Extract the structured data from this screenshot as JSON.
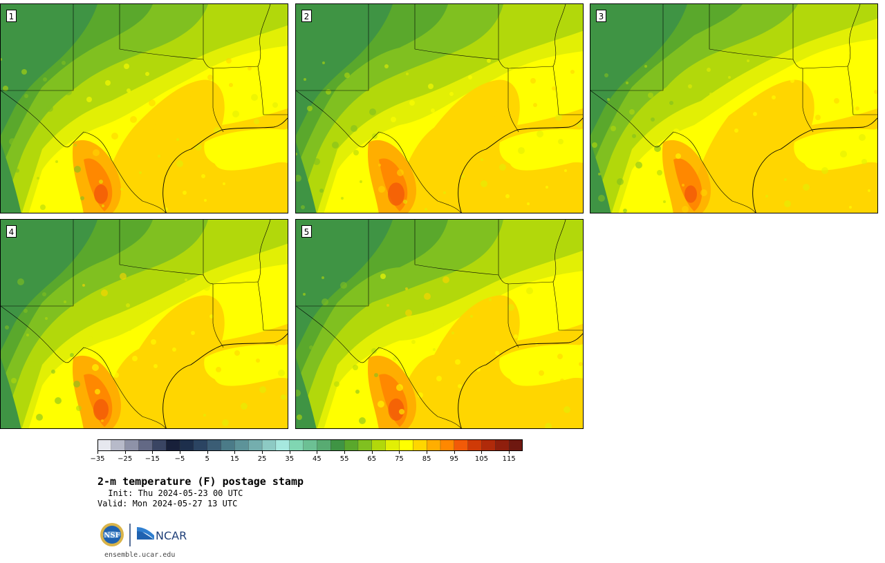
{
  "product_title": "2-m temperature (F) postage stamp",
  "init_text": " Init: Thu 2024-05-23 00 UTC",
  "valid_text": "Valid: Mon 2024-05-27 13 UTC",
  "panels": [
    {
      "label": "1"
    },
    {
      "label": "2"
    },
    {
      "label": "3"
    },
    {
      "label": "4"
    },
    {
      "label": "5"
    }
  ],
  "colorbar": {
    "levels": [
      -35,
      -30,
      -25,
      -20,
      -15,
      -10,
      -5,
      0,
      5,
      10,
      15,
      20,
      25,
      30,
      35,
      40,
      45,
      50,
      55,
      60,
      65,
      70,
      75,
      80,
      85,
      90,
      95,
      100,
      105,
      110,
      115,
      120
    ],
    "tick_labels": [
      "−35",
      "−25",
      "−15",
      "−5",
      "5",
      "15",
      "25",
      "35",
      "45",
      "55",
      "65",
      "75",
      "85",
      "95",
      "105",
      "115"
    ],
    "colors": [
      "#e6e8ef",
      "#b7bac9",
      "#8e92a8",
      "#636985",
      "#3a4563",
      "#18203a",
      "#1d2f4c",
      "#2b4462",
      "#3b5d75",
      "#4b7b88",
      "#5d9399",
      "#74aeae",
      "#8dcac4",
      "#a6e8df",
      "#80d6b2",
      "#6cc094",
      "#58ab72",
      "#3f9444",
      "#5aa82c",
      "#80c020",
      "#b2d80b",
      "#e2ef05",
      "#ffff00",
      "#ffd600",
      "#ffae00",
      "#ff8800",
      "#f25a08",
      "#cf3a07",
      "#b02a0a",
      "#8f1f0d",
      "#6e1810"
    ]
  },
  "logo": {
    "nsf_text": "NSF",
    "ncar_text": "NCAR"
  },
  "url_text": "ensemble.ucar.edu"
}
